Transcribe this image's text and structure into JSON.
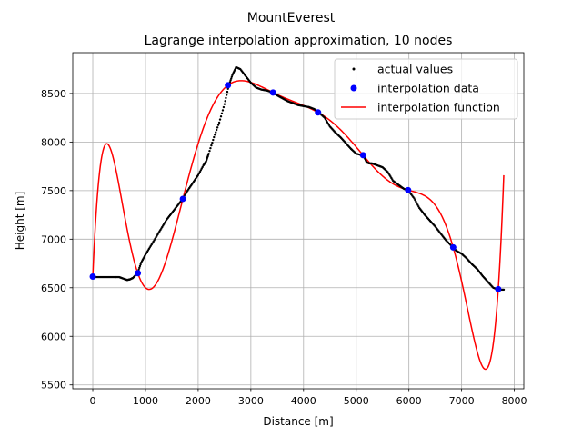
{
  "chart_data": {
    "type": "line",
    "suptitle": "MountEverest",
    "title": "Lagrange interpolation approximation, 10 nodes",
    "xlabel": "Distance [m]",
    "ylabel": "Height [m]",
    "xlim": [
      -380,
      8180
    ],
    "ylim": [
      5460,
      8920
    ],
    "xticks": [
      0,
      1000,
      2000,
      3000,
      4000,
      5000,
      6000,
      7000,
      8000
    ],
    "yticks": [
      5500,
      6000,
      6500,
      7000,
      7500,
      8000,
      8500
    ],
    "grid": true,
    "legend_position": "top-right",
    "series": [
      {
        "name": "actual values",
        "kind": "points",
        "color": "#000000",
        "x": [
          0,
          100,
          200,
          300,
          400,
          500,
          600,
          650,
          700,
          760,
          850,
          920,
          1000,
          1100,
          1200,
          1300,
          1400,
          1500,
          1600,
          1700,
          1800,
          1900,
          2000,
          2100,
          2150,
          2200,
          2300,
          2400,
          2500,
          2580,
          2650,
          2720,
          2800,
          2900,
          3000,
          3100,
          3200,
          3300,
          3420,
          3500,
          3600,
          3700,
          3800,
          3900,
          4000,
          4100,
          4200,
          4280,
          4400,
          4500,
          4600,
          4700,
          4800,
          4900,
          5000,
          5140,
          5200,
          5250,
          5300,
          5400,
          5500,
          5600,
          5700,
          5800,
          5900,
          5990,
          6100,
          6200,
          6300,
          6400,
          6500,
          6600,
          6700,
          6830,
          6900,
          7000,
          7100,
          7200,
          7300,
          7400,
          7500,
          7600,
          7700,
          7800
        ],
        "y": [
          6610,
          6610,
          6610,
          6610,
          6610,
          6610,
          6590,
          6580,
          6585,
          6600,
          6650,
          6760,
          6840,
          6930,
          7020,
          7110,
          7200,
          7270,
          7340,
          7410,
          7500,
          7580,
          7660,
          7760,
          7800,
          7880,
          8050,
          8200,
          8390,
          8580,
          8690,
          8770,
          8750,
          8680,
          8610,
          8560,
          8540,
          8530,
          8510,
          8480,
          8450,
          8420,
          8400,
          8380,
          8370,
          8360,
          8340,
          8310,
          8250,
          8160,
          8100,
          8050,
          7990,
          7930,
          7880,
          7860,
          7790,
          7780,
          7780,
          7760,
          7740,
          7690,
          7600,
          7560,
          7520,
          7500,
          7420,
          7320,
          7250,
          7190,
          7130,
          7060,
          6990,
          6920,
          6880,
          6850,
          6800,
          6740,
          6690,
          6620,
          6560,
          6500,
          6480,
          6480
        ]
      },
      {
        "name": "interpolation data",
        "kind": "markers",
        "color": "#0000ff",
        "x": [
          0,
          855,
          1710,
          2565,
          3420,
          4275,
          5130,
          5985,
          6840,
          7695
        ],
        "y": [
          6615,
          6650,
          7415,
          8585,
          8510,
          8305,
          7865,
          7505,
          6915,
          6485
        ]
      },
      {
        "name": "interpolation function",
        "kind": "line",
        "color": "#ff0000",
        "x": [
          0,
          855,
          1710,
          2565,
          3420,
          4275,
          5130,
          5985,
          6840,
          7695
        ],
        "y": [
          6615,
          6650,
          7415,
          8585,
          8510,
          8305,
          7865,
          7505,
          6915,
          6485
        ],
        "x_range": [
          0,
          7800
        ]
      }
    ]
  }
}
